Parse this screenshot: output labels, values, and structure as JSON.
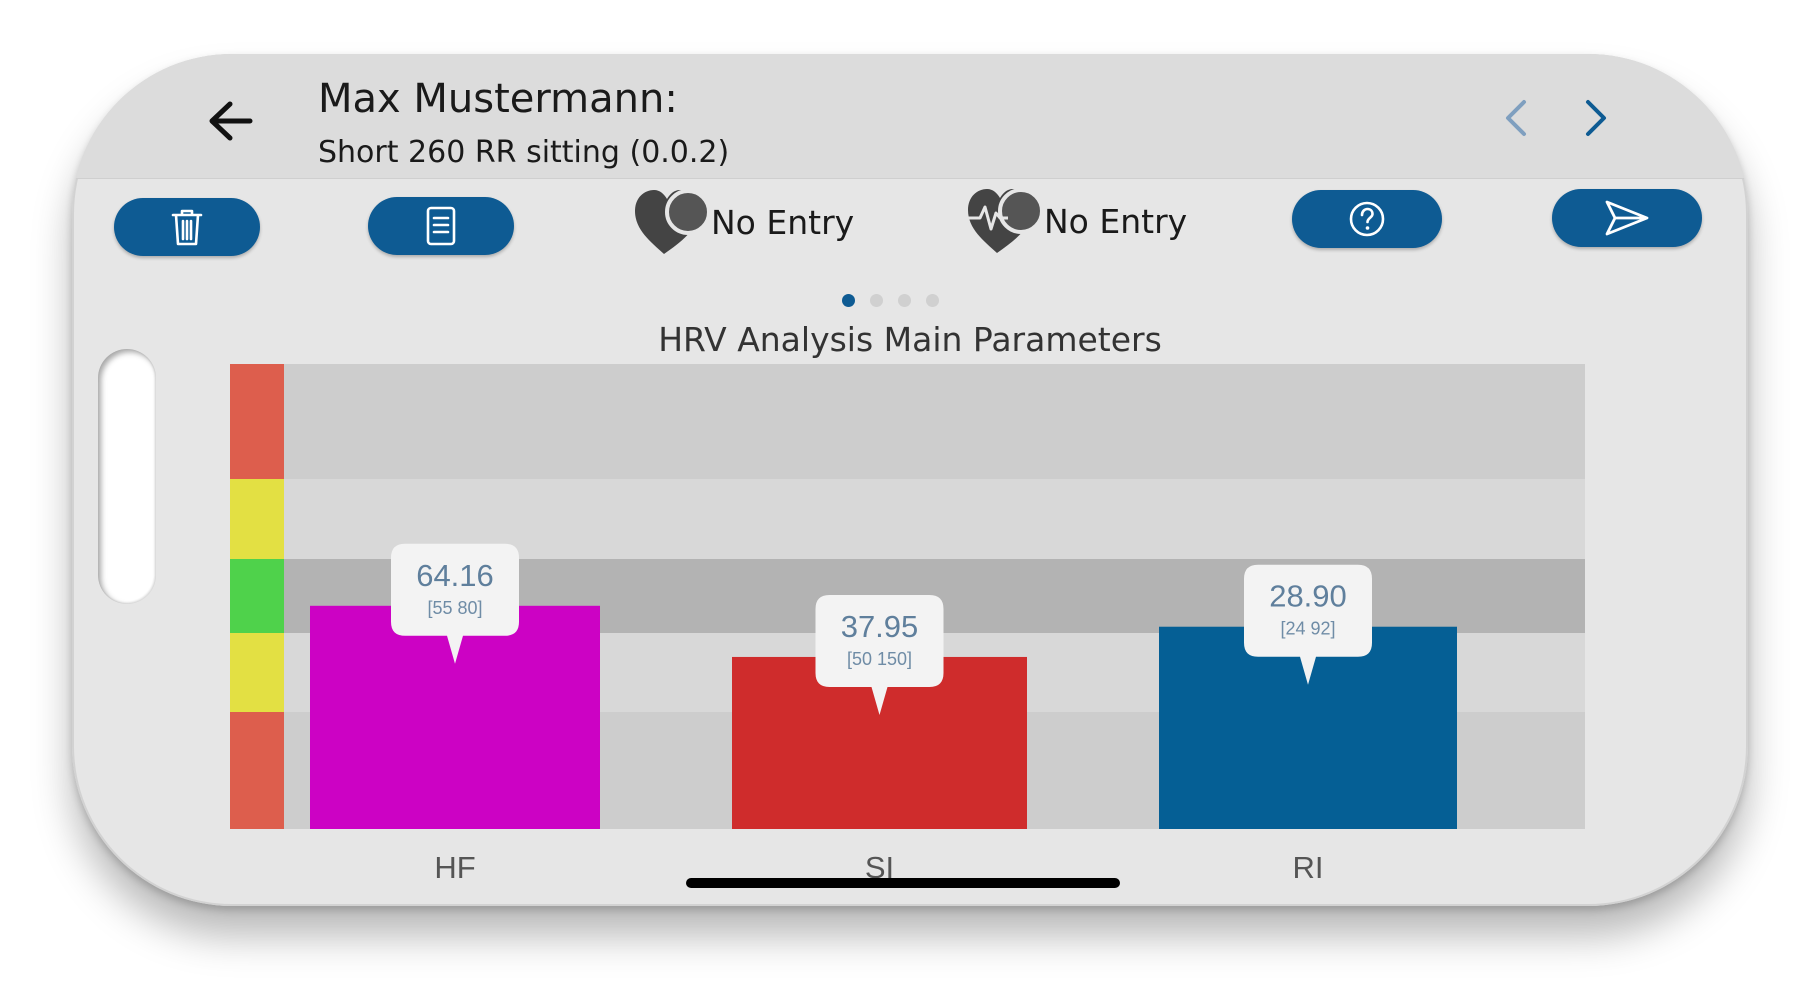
{
  "header": {
    "title": "Max Mustermann:",
    "subtitle": "Short 260 RR sitting (0.0.2)"
  },
  "toolbar": {
    "entries": [
      {
        "label": "No Entry",
        "icon": "heart-icon"
      },
      {
        "label": "No Entry",
        "icon": "heart-pulse-icon"
      }
    ]
  },
  "pager": {
    "count": 4,
    "active": 0
  },
  "colors": {
    "accent": "#0e5b93",
    "zone_red": "#dd5e4d",
    "zone_yellow": "#e3e043",
    "zone_green": "#4fd24b"
  },
  "chart_data": {
    "type": "bar",
    "title": "HRV Analysis Main Parameters",
    "categories": [
      "HF",
      "SI",
      "RI"
    ],
    "bars": [
      {
        "label": "HF",
        "value": "64.16",
        "range": "[55 80]",
        "color": "#cc02c4",
        "level": 0.48
      },
      {
        "label": "SI",
        "value": "37.95",
        "range": "[50 150]",
        "color": "#cf2c2c",
        "level": 0.37
      },
      {
        "label": "RI",
        "value": "28.90",
        "range": "[24 92]",
        "color": "#055f95",
        "level": 0.435
      }
    ]
  }
}
